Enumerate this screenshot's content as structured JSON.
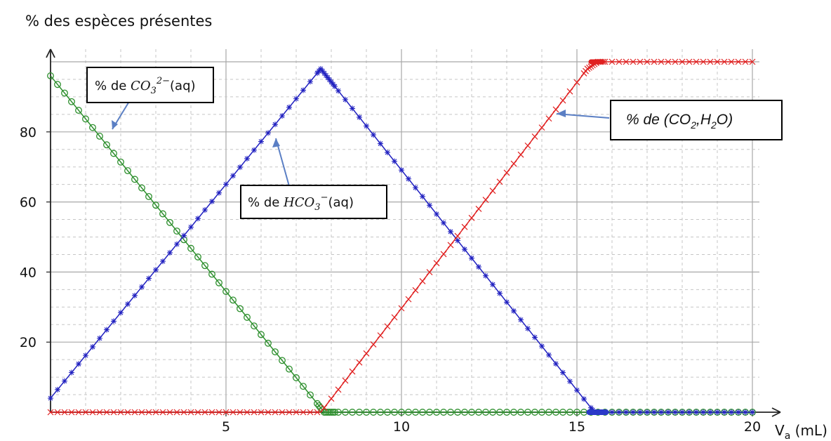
{
  "title": "% des espèces présentes",
  "chart_data": {
    "type": "line",
    "title": "% des espèces présentes",
    "xlabel": "Va (mL)",
    "ylabel": "% des espèces présentes",
    "xlim": [
      0,
      20
    ],
    "ylim": [
      0,
      100
    ],
    "x_ticks": [
      5,
      10,
      15,
      20
    ],
    "y_ticks": [
      20,
      40,
      60,
      80
    ],
    "grid": true,
    "series": [
      {
        "name": "% de CO3 2−(aq)",
        "color": "#2d8f2d",
        "marker": "circle",
        "x": [
          0,
          7.8,
          8,
          20
        ],
        "y": [
          96,
          0,
          0,
          0
        ]
      },
      {
        "name": "% de HCO3 −(aq)",
        "color": "#2020c0",
        "marker": "star",
        "x": [
          0,
          7.7,
          15.5,
          20
        ],
        "y": [
          4,
          98,
          0,
          0
        ]
      },
      {
        "name": "% de (CO2,H2O)",
        "color": "#e02020",
        "marker": "x",
        "x": [
          0,
          7.7,
          15.3,
          15.6,
          20
        ],
        "y": [
          0,
          0,
          98,
          100,
          100
        ]
      }
    ]
  },
  "annotations": {
    "co3": {
      "prefix": "% de ",
      "formula": "CO",
      "subscript": "3",
      "superscript": "2−",
      "suffix": "(aq)"
    },
    "hco3": {
      "prefix": "% de ",
      "formula": "HCO",
      "subscript": "3",
      "superscript": "−",
      "suffix": "(aq)"
    },
    "co2": {
      "prefix": "% de (CO",
      "subscript1": "2",
      "middle": ",H",
      "subscript2": "2",
      "suffix": "O)"
    }
  },
  "axis_labels": {
    "x_main": "V",
    "x_sub": "a",
    "x_unit": " (mL)"
  }
}
